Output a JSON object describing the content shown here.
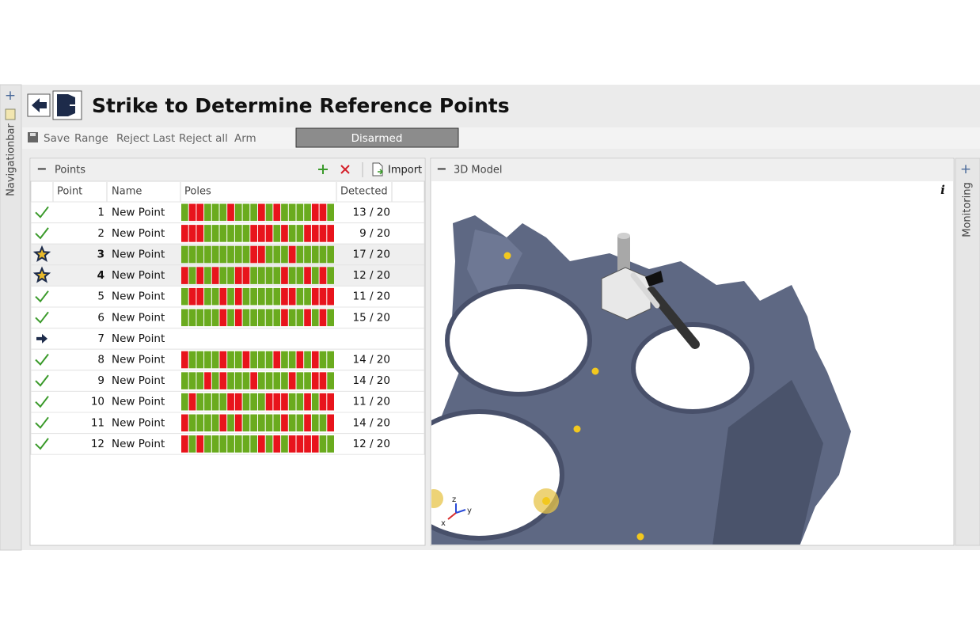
{
  "nav": {
    "navigationbar": "Navigationbar",
    "monitoring": "Monitoring"
  },
  "header": {
    "title": "Strike to Determine Reference Points"
  },
  "toolbar": {
    "items": [
      "Save",
      "Range",
      "Reject Last",
      "Reject all",
      "Arm"
    ],
    "status": "Disarmed"
  },
  "points_panel": {
    "title": "Points",
    "import": "Import",
    "columns": [
      "Point",
      "Name",
      "Poles",
      "Detected"
    ],
    "rows": [
      {
        "point": 1,
        "name": "New Point",
        "poles": [
          1,
          0,
          0,
          1,
          1,
          1,
          0,
          1,
          1,
          1,
          0,
          1,
          0,
          1,
          1,
          1,
          1,
          0,
          0,
          1
        ],
        "detected": "13 / 20"
      },
      {
        "point": 2,
        "name": "New Point",
        "poles": [
          0,
          0,
          0,
          1,
          1,
          1,
          1,
          1,
          1,
          0,
          0,
          0,
          1,
          0,
          1,
          1,
          0,
          0,
          0,
          0
        ],
        "detected": "9 / 20"
      },
      {
        "point": 3,
        "name": "New Point",
        "poles": [
          1,
          1,
          1,
          1,
          1,
          1,
          1,
          1,
          1,
          0,
          0,
          1,
          1,
          1,
          0,
          1,
          1,
          1,
          1,
          1
        ],
        "detected": "17 / 20"
      },
      {
        "point": 4,
        "name": "New Point",
        "poles": [
          0,
          1,
          0,
          1,
          0,
          1,
          1,
          0,
          0,
          1,
          1,
          1,
          1,
          0,
          1,
          1,
          0,
          1,
          0,
          1
        ],
        "detected": "12 / 20"
      },
      {
        "point": 5,
        "name": "New Point",
        "poles": [
          1,
          0,
          0,
          1,
          1,
          0,
          1,
          0,
          1,
          1,
          1,
          1,
          1,
          0,
          0,
          1,
          1,
          0,
          0,
          0
        ],
        "detected": "11 / 20"
      },
      {
        "point": 6,
        "name": "New Point",
        "poles": [
          1,
          1,
          1,
          1,
          1,
          0,
          1,
          0,
          1,
          1,
          1,
          1,
          1,
          0,
          1,
          1,
          0,
          1,
          0,
          1
        ],
        "detected": "15 / 20"
      },
      {
        "point": 7,
        "name": "New Point"
      },
      {
        "point": 8,
        "name": "New Point",
        "poles": [
          0,
          1,
          1,
          1,
          1,
          0,
          1,
          1,
          0,
          1,
          1,
          1,
          0,
          1,
          1,
          0,
          1,
          0,
          1,
          1
        ],
        "detected": "14 / 20"
      },
      {
        "point": 9,
        "name": "New Point",
        "poles": [
          1,
          1,
          1,
          0,
          1,
          0,
          1,
          1,
          1,
          0,
          1,
          1,
          1,
          1,
          0,
          1,
          1,
          0,
          0,
          1
        ],
        "detected": "14 / 20"
      },
      {
        "point": 10,
        "name": "New Point",
        "poles": [
          1,
          0,
          1,
          1,
          1,
          1,
          0,
          0,
          1,
          1,
          1,
          0,
          0,
          0,
          1,
          1,
          0,
          1,
          0,
          0
        ],
        "detected": "11 / 20"
      },
      {
        "point": 11,
        "name": "New Point",
        "poles": [
          0,
          1,
          1,
          1,
          1,
          0,
          1,
          0,
          1,
          1,
          1,
          1,
          1,
          0,
          1,
          1,
          0,
          1,
          1,
          0
        ],
        "detected": "14 / 20"
      },
      {
        "point": 12,
        "name": "New Point",
        "poles": [
          0,
          1,
          0,
          1,
          1,
          1,
          1,
          1,
          1,
          1,
          0,
          1,
          0,
          1,
          0,
          0,
          0,
          0,
          1,
          1
        ],
        "detected": "12 / 20"
      }
    ]
  },
  "model_panel": {
    "title": "3D Model",
    "info": "i",
    "axes": [
      "z",
      "y",
      "x"
    ]
  }
}
